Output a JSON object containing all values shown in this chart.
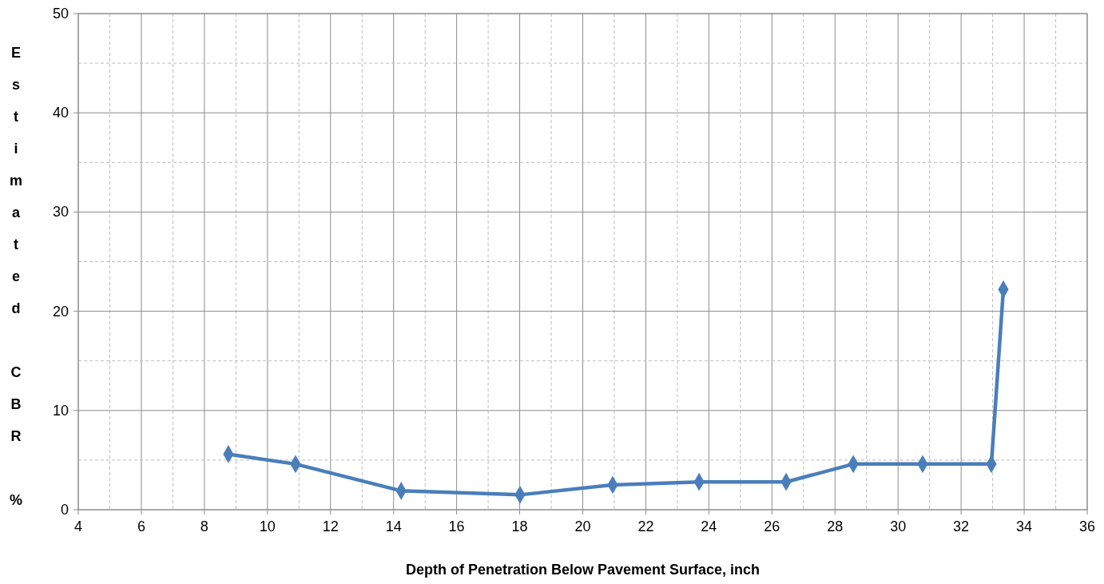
{
  "chart_data": {
    "type": "line",
    "xlabel": "Depth of Penetration Below Pavement Surface, inch",
    "ylabel": "Estimated CBR %",
    "x": [
      8.76,
      10.89,
      14.24,
      18.01,
      20.95,
      23.69,
      26.45,
      28.58,
      30.78,
      32.96,
      33.34
    ],
    "series": [
      {
        "color": "#4a7ebb",
        "values": [
          5.6,
          4.6,
          1.9,
          1.5,
          2.5,
          2.8,
          2.8,
          4.6,
          4.6,
          4.6,
          22.2
        ]
      }
    ],
    "xlim": [
      4,
      36
    ],
    "xticks": [
      4,
      {
        "value": 5,
        "label": null
      },
      6,
      {
        "value": 7,
        "label": null
      },
      8,
      {
        "value": 9,
        "label": null
      },
      10,
      {
        "value": 11,
        "label": null
      },
      12,
      {
        "value": 13,
        "label": null
      },
      14,
      {
        "value": 15,
        "label": null
      },
      16,
      {
        "value": 17,
        "label": null
      },
      18,
      {
        "value": 19,
        "label": null
      },
      20,
      {
        "value": 21,
        "label": null
      },
      22,
      {
        "value": 23,
        "label": null
      },
      24,
      {
        "value": 25,
        "label": null
      },
      26,
      {
        "value": 27,
        "label": null
      },
      28,
      {
        "value": 29,
        "label": null
      },
      30,
      {
        "value": 31,
        "label": null
      },
      32,
      {
        "value": 33,
        "label": null
      },
      34,
      {
        "value": 35,
        "label": null
      },
      36
    ],
    "ylim": [
      0,
      50
    ],
    "yticks": [
      0,
      {
        "value": 5,
        "label": null
      },
      10,
      {
        "value": 15,
        "label": null
      },
      20,
      {
        "value": 25,
        "label": null
      },
      30,
      {
        "value": 35,
        "label": null
      },
      40,
      {
        "value": 45,
        "label": null
      },
      50
    ],
    "grid": true,
    "marker": "diamond",
    "line_style": "solid"
  }
}
